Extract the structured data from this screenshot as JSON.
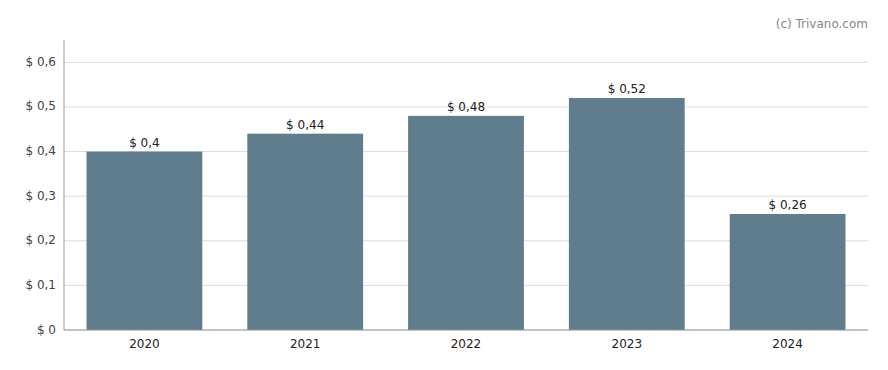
{
  "chart_data": {
    "type": "bar",
    "categories": [
      "2020",
      "2021",
      "2022",
      "2023",
      "2024"
    ],
    "values": [
      0.4,
      0.44,
      0.48,
      0.52,
      0.26
    ],
    "value_labels": [
      "$ 0,4",
      "$ 0,44",
      "$ 0,48",
      "$ 0,52",
      "$ 0,26"
    ],
    "color": "#5f7d8c",
    "ylim": [
      0,
      0.65
    ],
    "yticks": [
      {
        "value": 0.0,
        "label": "$ 0"
      },
      {
        "value": 0.1,
        "label": "$ 0,1"
      },
      {
        "value": 0.2,
        "label": "$ 0,2"
      },
      {
        "value": 0.3,
        "label": "$ 0,3"
      },
      {
        "value": 0.4,
        "label": "$ 0,4"
      },
      {
        "value": 0.5,
        "label": "$ 0,5"
      },
      {
        "value": 0.6,
        "label": "$ 0,6"
      }
    ],
    "grid": true,
    "data_labels": true,
    "annotation": "(c) Trivano.com"
  }
}
